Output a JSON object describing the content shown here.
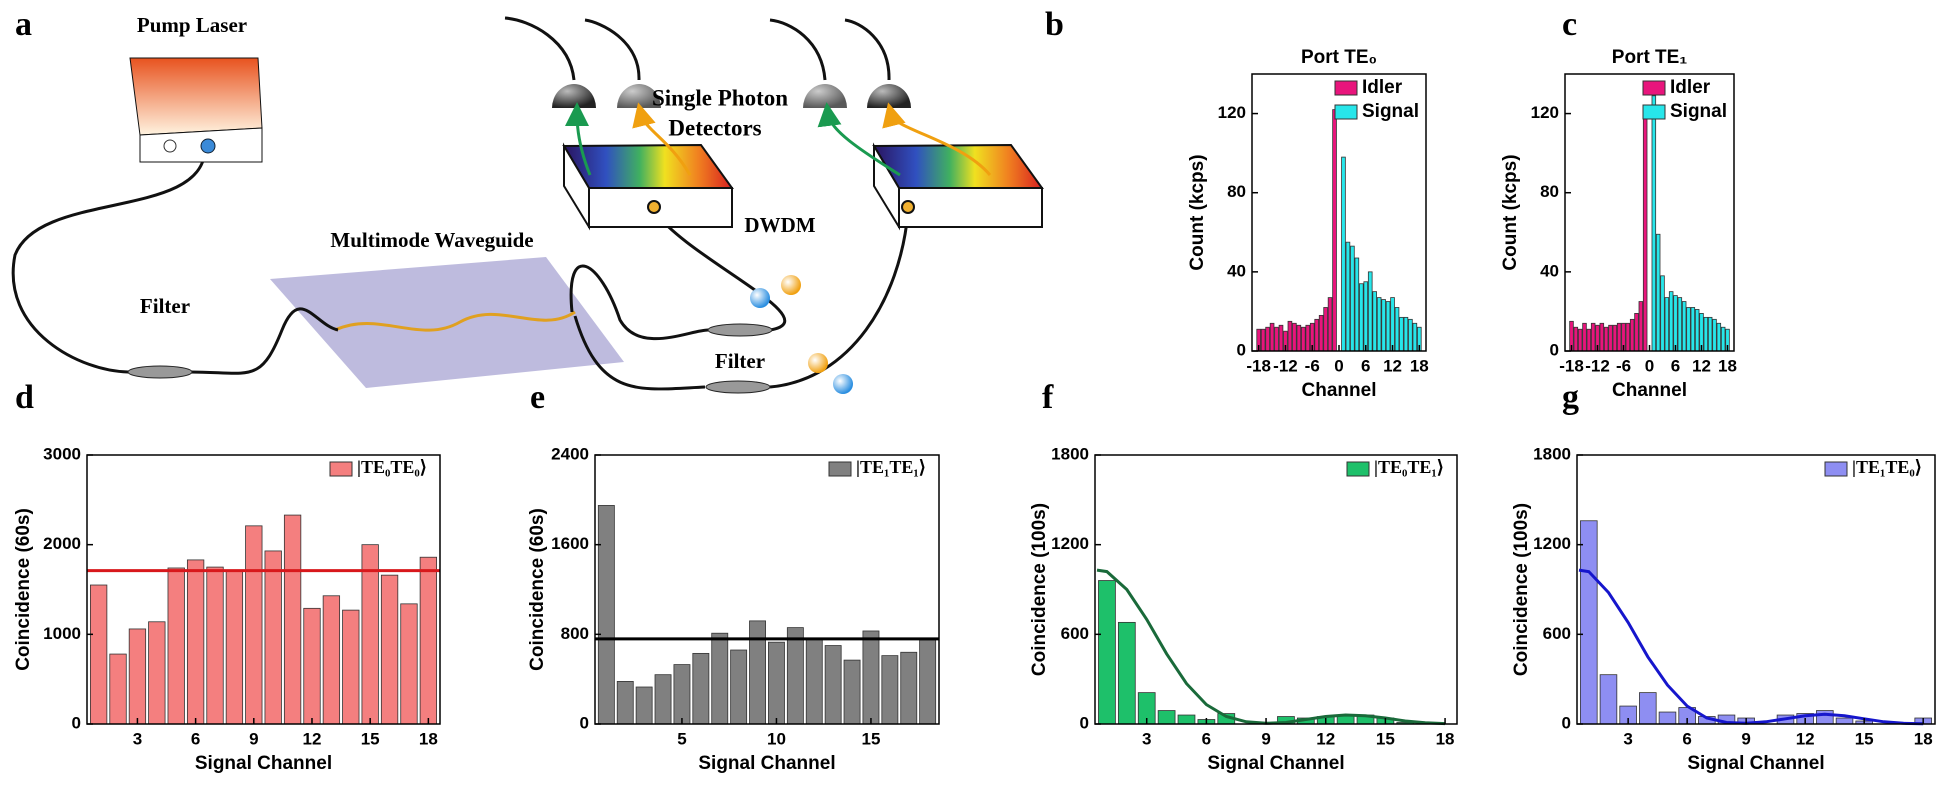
{
  "panel_labels": [
    "a",
    "b",
    "c",
    "d",
    "e",
    "f",
    "g"
  ],
  "diagram": {
    "pump_laser": "Pump Laser",
    "detectors": [
      "Single Photon",
      "Detectors"
    ],
    "waveguide": "Multimode Waveguide",
    "dwdm": "DWDM",
    "filters": [
      "Filter",
      "Filter"
    ]
  },
  "chart_data": [
    {
      "type": "bar",
      "title": "Port TE₀",
      "xlabel": "Channel",
      "ylabel": "Count (kcps)",
      "xlim": [
        -19.5,
        19.5
      ],
      "ylim": [
        0,
        140
      ],
      "xticks": [
        -18,
        -12,
        -6,
        0,
        6,
        12,
        18
      ],
      "yticks": [
        0,
        40,
        80,
        120
      ],
      "legend": "upper right",
      "series": [
        {
          "name": "Idler",
          "color": "#e8157c",
          "x": [
            -18,
            -17,
            -16,
            -15,
            -14,
            -13,
            -12,
            -11,
            -10,
            -9,
            -8,
            -7,
            -6,
            -5,
            -4,
            -3,
            -2,
            -1
          ],
          "values": [
            11,
            11,
            12,
            14,
            12,
            13,
            10,
            15,
            14,
            13,
            12,
            13,
            14,
            16,
            18,
            22,
            27,
            122
          ]
        },
        {
          "name": "Signal",
          "color": "#27e6ea",
          "x": [
            1,
            2,
            3,
            4,
            5,
            6,
            7,
            8,
            9,
            10,
            11,
            12,
            13,
            14,
            15,
            16,
            17,
            18
          ],
          "values": [
            98,
            55,
            53,
            47,
            34,
            35,
            40,
            30,
            27,
            26,
            25,
            27,
            22,
            17,
            17,
            16,
            14,
            12
          ]
        }
      ]
    },
    {
      "type": "bar",
      "title": "Port TE₁",
      "xlabel": "Channel",
      "ylabel": "Count (kcps)",
      "xlim": [
        -19.5,
        19.5
      ],
      "ylim": [
        0,
        140
      ],
      "xticks": [
        -18,
        -12,
        -6,
        0,
        6,
        12,
        18
      ],
      "yticks": [
        0,
        40,
        80,
        120
      ],
      "legend": "upper right",
      "series": [
        {
          "name": "Idler",
          "color": "#e8157c",
          "x": [
            -18,
            -17,
            -16,
            -15,
            -14,
            -13,
            -12,
            -11,
            -10,
            -9,
            -8,
            -7,
            -6,
            -5,
            -4,
            -3,
            -2,
            -1
          ],
          "values": [
            15,
            12,
            11,
            14,
            11,
            14,
            13,
            14,
            12,
            13,
            13,
            14,
            14,
            14,
            16,
            19,
            25,
            120
          ]
        },
        {
          "name": "Signal",
          "color": "#27e6ea",
          "x": [
            1,
            2,
            3,
            4,
            5,
            6,
            7,
            8,
            9,
            10,
            11,
            12,
            13,
            14,
            15,
            16,
            17,
            18
          ],
          "values": [
            129,
            59,
            38,
            27,
            30,
            28,
            27,
            25,
            22,
            22,
            21,
            19,
            17,
            17,
            16,
            14,
            12,
            11
          ]
        }
      ]
    },
    {
      "type": "bar",
      "xlabel": "Signal Channel",
      "ylabel": "Coincidence (60s)",
      "xlim": [
        0.4,
        18.6
      ],
      "ylim": [
        0,
        3000
      ],
      "xticks": [
        3,
        6,
        9,
        12,
        15,
        18
      ],
      "yticks": [
        0,
        1000,
        2000,
        3000
      ],
      "legend": "upper right",
      "series": [
        {
          "name": "|TE₀TE₀⟩",
          "color": "#f47f7f",
          "x": [
            1,
            2,
            3,
            4,
            5,
            6,
            7,
            8,
            9,
            10,
            11,
            12,
            13,
            14,
            15,
            16,
            17,
            18
          ],
          "values": [
            1550,
            780,
            1060,
            1140,
            1740,
            1830,
            1750,
            1700,
            2210,
            1930,
            2330,
            1290,
            1430,
            1270,
            2000,
            1660,
            1340,
            1860
          ]
        }
      ],
      "reference_line": {
        "value": 1710,
        "color": "#d8181c"
      }
    },
    {
      "type": "bar",
      "xlabel": "Signal Channel",
      "ylabel": "Coincidence (60s)",
      "xlim": [
        0.4,
        18.6
      ],
      "ylim": [
        0,
        2400
      ],
      "xticks": [
        5,
        10,
        15
      ],
      "yticks": [
        0,
        800,
        1600,
        2400
      ],
      "legend": "upper right",
      "series": [
        {
          "name": "|TE₁TE₁⟩",
          "color": "#808080",
          "x": [
            1,
            2,
            3,
            4,
            5,
            6,
            7,
            8,
            9,
            10,
            11,
            12,
            13,
            14,
            15,
            16,
            17,
            18
          ],
          "values": [
            1950,
            380,
            330,
            440,
            530,
            630,
            810,
            660,
            920,
            730,
            860,
            760,
            700,
            570,
            830,
            610,
            640,
            750
          ]
        }
      ],
      "reference_line": {
        "value": 760,
        "color": "#000000"
      }
    },
    {
      "type": "bar",
      "xlabel": "Signal Channel",
      "ylabel": "Coincidence (100s)",
      "xlim": [
        0.4,
        18.6
      ],
      "ylim": [
        0,
        1800
      ],
      "xticks": [
        3,
        6,
        9,
        12,
        15,
        18
      ],
      "yticks": [
        0,
        600,
        1200,
        1800
      ],
      "legend": "upper right",
      "series": [
        {
          "name": "|TE₀TE₁⟩",
          "color": "#1ec06a",
          "x": [
            1,
            2,
            3,
            4,
            5,
            6,
            7,
            8,
            9,
            10,
            11,
            12,
            13,
            14,
            15,
            16,
            17,
            18
          ],
          "values": [
            960,
            680,
            210,
            90,
            60,
            30,
            70,
            0,
            0,
            50,
            40,
            50,
            60,
            60,
            40,
            10,
            0,
            0
          ]
        }
      ],
      "fit": {
        "color": "#1a6a3a",
        "x": [
          0.5,
          1,
          2,
          3,
          4,
          5,
          6,
          7,
          8,
          9,
          10,
          11,
          12,
          13,
          14,
          15,
          16,
          17,
          18
        ],
        "values": [
          1030,
          1020,
          900,
          700,
          470,
          270,
          130,
          50,
          15,
          5,
          10,
          30,
          50,
          60,
          55,
          40,
          20,
          8,
          3
        ]
      }
    },
    {
      "type": "bar",
      "xlabel": "Signal Channel",
      "ylabel": "Coincidence (100s)",
      "xlim": [
        0.4,
        18.6
      ],
      "ylim": [
        0,
        1800
      ],
      "xticks": [
        3,
        6,
        9,
        12,
        15,
        18
      ],
      "yticks": [
        0,
        600,
        1200,
        1800
      ],
      "legend": "upper right",
      "series": [
        {
          "name": "|TE₁TE₀⟩",
          "color": "#8e8ef2",
          "x": [
            1,
            2,
            3,
            4,
            5,
            6,
            7,
            8,
            9,
            10,
            11,
            12,
            13,
            14,
            15,
            16,
            17,
            18
          ],
          "values": [
            1360,
            330,
            120,
            210,
            80,
            110,
            50,
            60,
            40,
            0,
            60,
            70,
            90,
            40,
            20,
            0,
            0,
            40
          ]
        }
      ],
      "fit": {
        "color": "#1616cc",
        "x": [
          0.5,
          1,
          2,
          3,
          4,
          5,
          6,
          7,
          8,
          9,
          10,
          11,
          12,
          13,
          14,
          15,
          16,
          17,
          18
        ],
        "values": [
          1030,
          1020,
          880,
          680,
          450,
          260,
          120,
          40,
          10,
          5,
          15,
          35,
          55,
          65,
          55,
          35,
          15,
          5,
          2
        ]
      }
    }
  ]
}
